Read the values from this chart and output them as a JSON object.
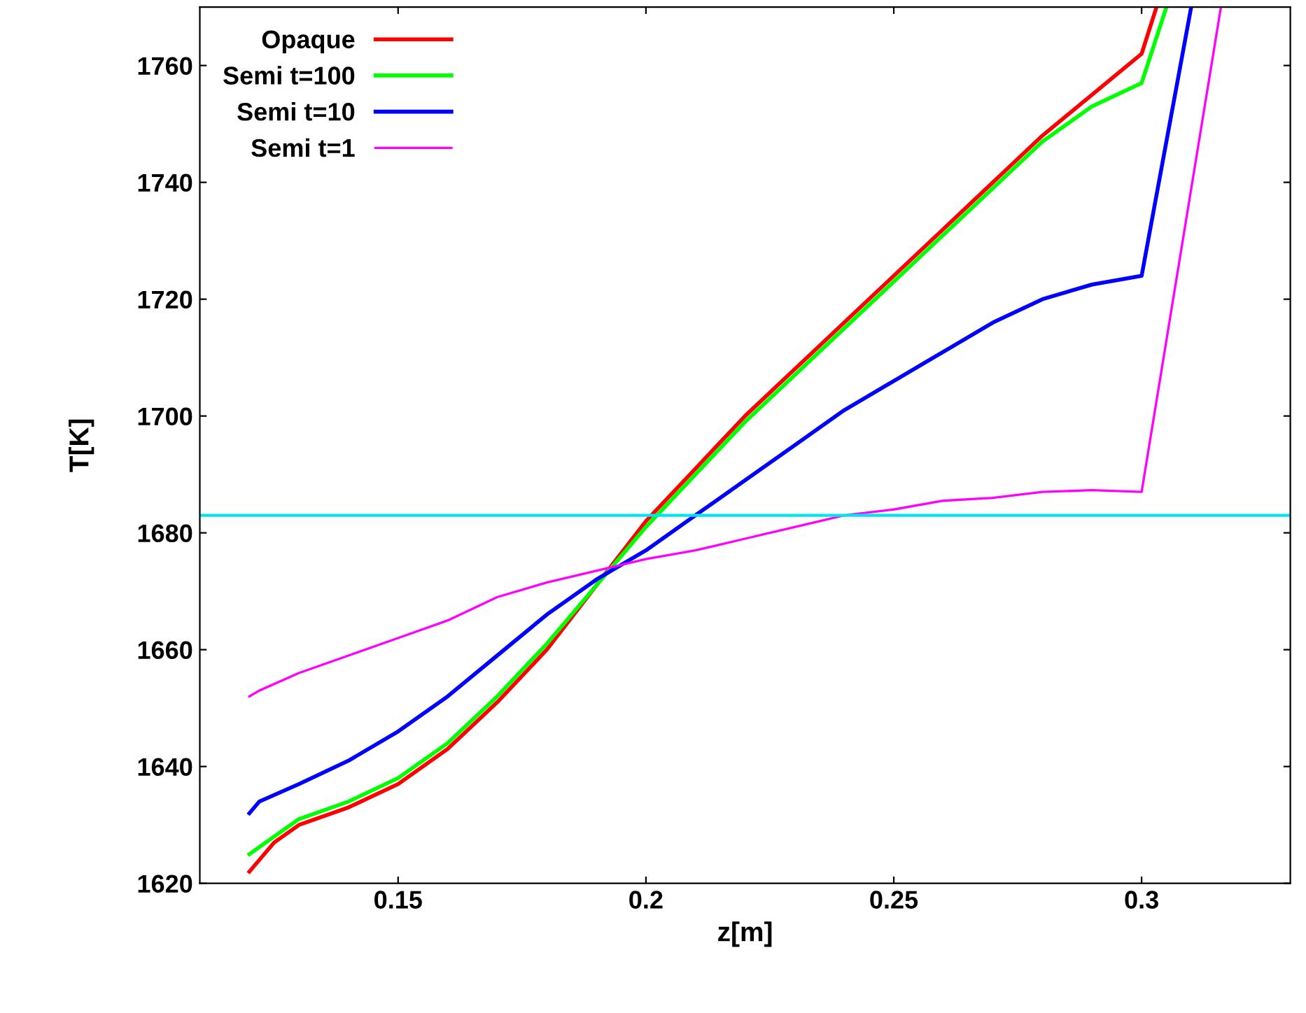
{
  "chart_data": {
    "type": "line",
    "xlabel": "z[m]",
    "ylabel": "T[K]",
    "xlim": [
      0.11,
      0.33
    ],
    "ylim": [
      1620,
      1770
    ],
    "xticks": [
      0.15,
      0.2,
      0.25,
      0.3
    ],
    "yticks": [
      1620,
      1640,
      1660,
      1680,
      1700,
      1720,
      1740,
      1760
    ],
    "grid": false,
    "legend": "top left",
    "marker": "none",
    "line_style": "solid",
    "series": [
      {
        "name": "Opaque",
        "color": "#ff0000",
        "x": [
          0.12,
          0.125,
          0.13,
          0.14,
          0.15,
          0.16,
          0.17,
          0.18,
          0.19,
          0.2,
          0.21,
          0.22,
          0.23,
          0.24,
          0.25,
          0.26,
          0.27,
          0.28,
          0.29,
          0.3,
          0.303
        ],
        "values": [
          1622,
          1627,
          1630,
          1633,
          1637,
          1643,
          1651,
          1660,
          1671,
          1682,
          1691,
          1700,
          1708,
          1716,
          1724,
          1732,
          1740,
          1748,
          1755,
          1762,
          1770
        ]
      },
      {
        "name": "Semi t=100",
        "color": "#00ff00",
        "x": [
          0.12,
          0.125,
          0.13,
          0.14,
          0.15,
          0.16,
          0.17,
          0.18,
          0.19,
          0.2,
          0.21,
          0.22,
          0.23,
          0.24,
          0.25,
          0.26,
          0.27,
          0.28,
          0.29,
          0.3,
          0.305
        ],
        "values": [
          1625,
          1628,
          1631,
          1634,
          1638,
          1644,
          1652,
          1661,
          1671,
          1681,
          1690,
          1699,
          1707,
          1715,
          1723,
          1731,
          1739,
          1747,
          1753,
          1757,
          1770
        ]
      },
      {
        "name": "Semi t=10",
        "color": "#0000ff",
        "x": [
          0.12,
          0.122,
          0.13,
          0.14,
          0.15,
          0.16,
          0.17,
          0.18,
          0.19,
          0.2,
          0.21,
          0.22,
          0.23,
          0.24,
          0.25,
          0.26,
          0.27,
          0.28,
          0.29,
          0.3,
          0.31
        ],
        "values": [
          1632,
          1634,
          1637,
          1641,
          1646,
          1652,
          1659,
          1666,
          1672,
          1677,
          1683,
          1689,
          1695,
          1701,
          1706,
          1711,
          1716,
          1720,
          1722.5,
          1724,
          1770
        ]
      },
      {
        "name": "Semi t=1",
        "color": "#ff00ff",
        "x": [
          0.12,
          0.122,
          0.13,
          0.14,
          0.15,
          0.16,
          0.17,
          0.18,
          0.19,
          0.2,
          0.21,
          0.22,
          0.23,
          0.24,
          0.25,
          0.26,
          0.27,
          0.28,
          0.29,
          0.3,
          0.316
        ],
        "values": [
          1652,
          1653,
          1656,
          1659,
          1662,
          1665,
          1669,
          1671.5,
          1673.5,
          1675.5,
          1677,
          1679,
          1681,
          1683,
          1684,
          1685.5,
          1686,
          1687,
          1687.3,
          1687,
          1770
        ]
      }
    ],
    "ref_lines": [
      {
        "axis": "y",
        "value": 1683,
        "color": "#00e5ee",
        "line_style": "solid"
      }
    ]
  }
}
